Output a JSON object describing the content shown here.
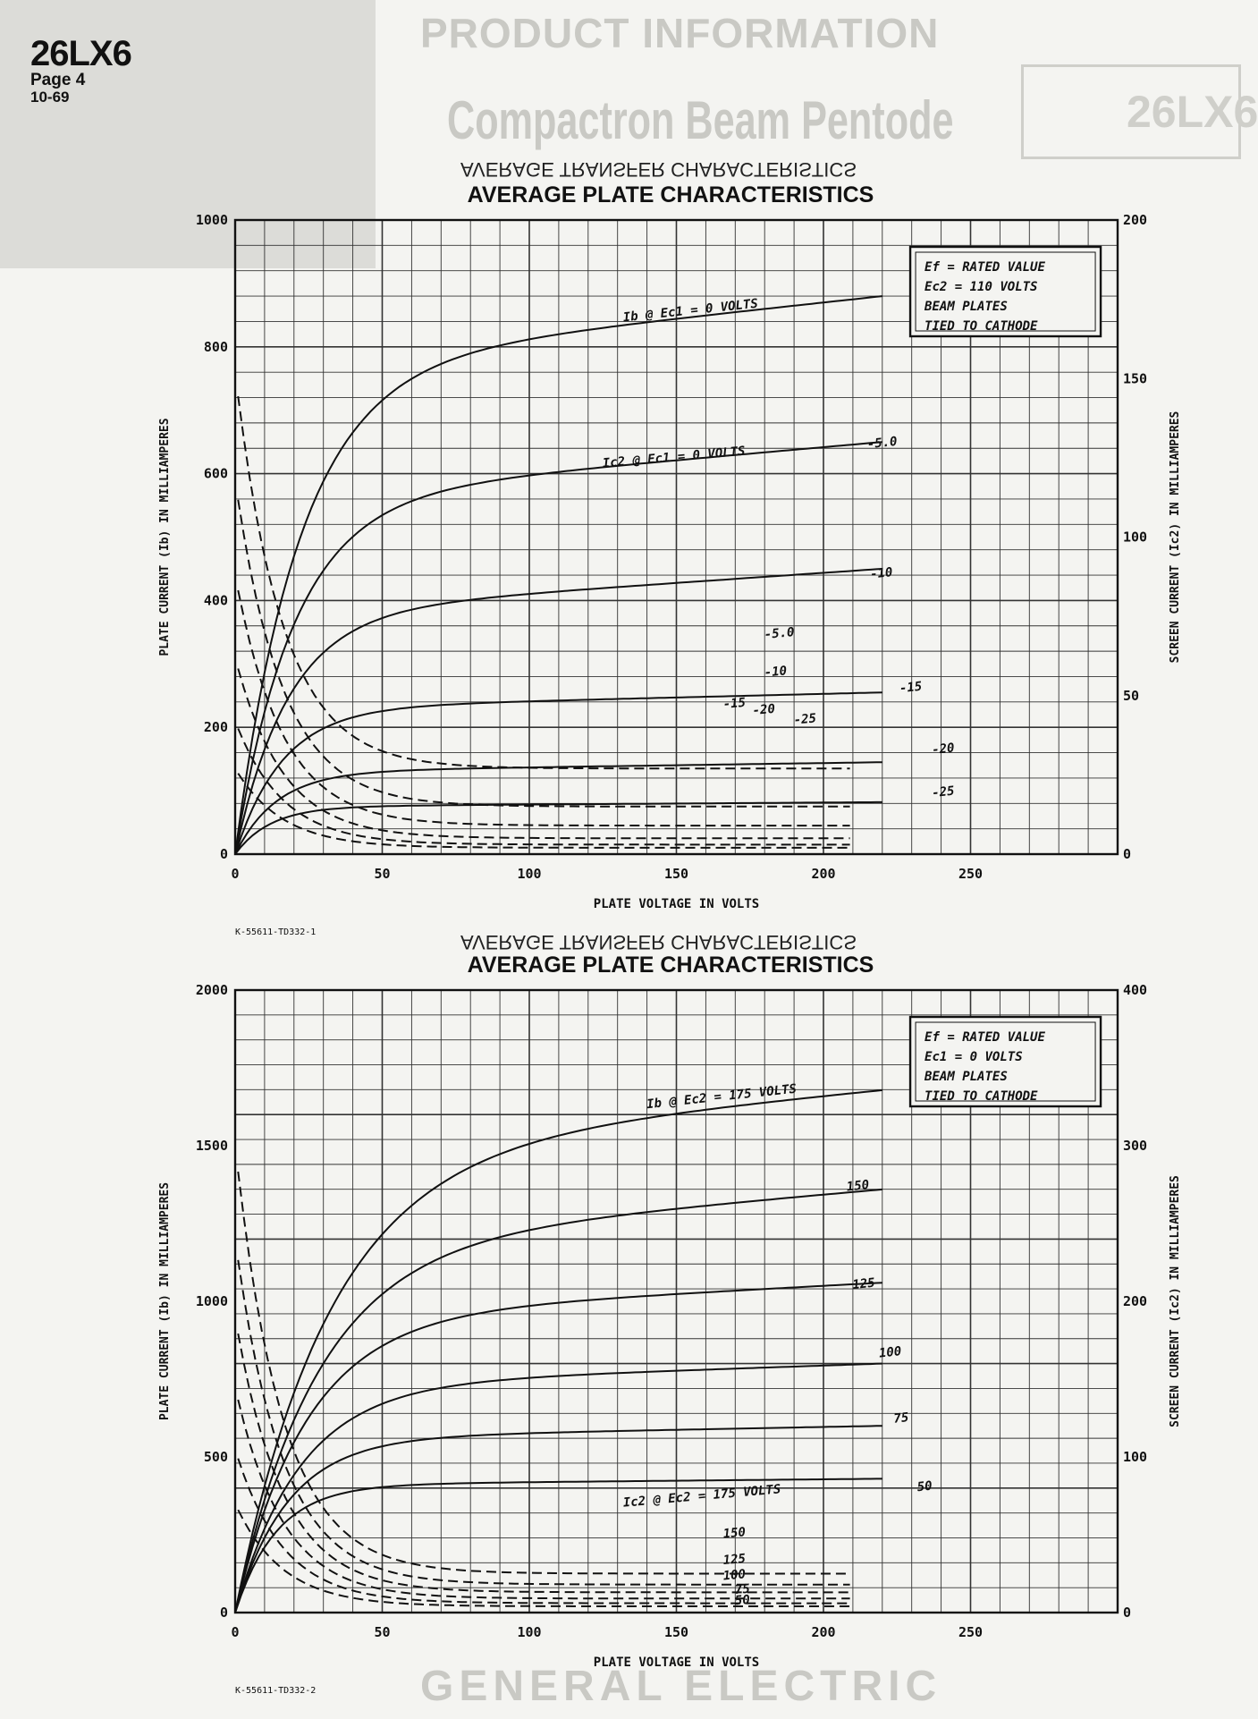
{
  "page": {
    "model": "26LX6",
    "page_label": "Page 4",
    "date": "10-69",
    "mirrored_title": "AVERAGE TRANSFER CHARACTERISTICS",
    "ghost_header": "PRODUCT INFORMATION",
    "ghost_subhead": "Compactron Beam Pentode",
    "ghost_box": "26LX6",
    "ghost_footer": "GENERAL ELECTRIC"
  },
  "colors": {
    "ink": "#111111",
    "paper": "#f4f4f1",
    "ghost": "#c9c9c4"
  },
  "chart_data": [
    {
      "type": "line",
      "title": "AVERAGE PLATE CHARACTERISTICS",
      "xlabel": "PLATE VOLTAGE IN VOLTS",
      "ylabel": "PLATE CURRENT (Ib) IN MILLIAMPERES",
      "y2label": "SCREEN CURRENT (Ic2) IN MILLIAMPERES",
      "xlim": [
        0,
        300
      ],
      "ylim": [
        0,
        1000
      ],
      "y2lim": [
        0,
        200
      ],
      "xticks": [
        0,
        50,
        100,
        150,
        200,
        250
      ],
      "yticks": [
        0,
        200,
        400,
        600,
        800,
        1000
      ],
      "y2ticks": [
        0,
        50,
        100,
        150,
        200
      ],
      "grid": true,
      "drawing_number": "K-55611-TD332-1",
      "conditions": [
        "Ef = RATED VALUE",
        "Ec2 = 110 VOLTS",
        "BEAM PLATES",
        "TIED TO CATHODE"
      ],
      "plate_series": [
        {
          "label": "Ib @ Ec1 = 0 VOLTS",
          "knee": 22,
          "level": 770,
          "end": 880,
          "at": [
            132,
            840
          ]
        },
        {
          "label": "-5.0",
          "knee": 20,
          "level": 560,
          "end": 650,
          "at": [
            215,
            640
          ]
        },
        {
          "label": "-10",
          "knee": 18,
          "level": 380,
          "end": 450,
          "at": [
            216,
            435
          ]
        },
        {
          "label": "-15",
          "knee": 16,
          "level": 230,
          "end": 255,
          "at": [
            226,
            255
          ]
        },
        {
          "label": "-20",
          "knee": 14,
          "level": 130,
          "end": 145,
          "at": [
            237,
            158
          ]
        },
        {
          "label": "-25",
          "knee": 12,
          "level": 75,
          "end": 82,
          "at": [
            237,
            90
          ]
        }
      ],
      "screen_series": [
        {
          "label": "Ic2 @ Ec1 = 0 VOLTS",
          "start": 152,
          "end": 27,
          "at": [
            125,
            122
          ]
        },
        {
          "label": "-5.0",
          "start": 118,
          "end": 15,
          "at": [
            180,
            68
          ]
        },
        {
          "label": "-10",
          "start": 88,
          "end": 9,
          "at": [
            180,
            56
          ]
        },
        {
          "label": "-15",
          "start": 62,
          "end": 5,
          "at": [
            166,
            46
          ]
        },
        {
          "label": "-20",
          "start": 42,
          "end": 3,
          "at": [
            176,
            44
          ]
        },
        {
          "label": "-25",
          "start": 27,
          "end": 2,
          "at": [
            190,
            41
          ]
        }
      ]
    },
    {
      "type": "line",
      "title": "AVERAGE PLATE CHARACTERISTICS",
      "xlabel": "PLATE VOLTAGE IN VOLTS",
      "ylabel": "PLATE CURRENT (Ib) IN MILLIAMPERES",
      "y2label": "SCREEN CURRENT (Ic2) IN MILLIAMPERES",
      "xlim": [
        0,
        300
      ],
      "ylim": [
        0,
        2000
      ],
      "y2lim": [
        0,
        400
      ],
      "xticks": [
        0,
        50,
        100,
        150,
        200,
        250
      ],
      "yticks": [
        0,
        500,
        1000,
        1500,
        2000
      ],
      "y2ticks": [
        0,
        100,
        200,
        300,
        400
      ],
      "grid": true,
      "drawing_number": "K-55611-TD332-2",
      "conditions": [
        "Ef = RATED VALUE",
        "Ec1 = 0 VOLTS",
        "BEAM PLATES",
        "TIED TO CATHODE"
      ],
      "plate_series": [
        {
          "label": "Ib @ Ec2 = 175 VOLTS",
          "knee": 32,
          "level": 1480,
          "end": 1680,
          "at": [
            140,
            1620
          ]
        },
        {
          "label": "150",
          "knee": 28,
          "level": 1180,
          "end": 1360,
          "at": [
            208,
            1355
          ]
        },
        {
          "label": "125",
          "knee": 24,
          "level": 950,
          "end": 1060,
          "at": [
            210,
            1040
          ]
        },
        {
          "label": "100",
          "knee": 22,
          "level": 730,
          "end": 800,
          "at": [
            219,
            820
          ]
        },
        {
          "label": "75",
          "knee": 18,
          "level": 560,
          "end": 600,
          "at": [
            224,
            610
          ]
        },
        {
          "label": "50",
          "knee": 14,
          "level": 410,
          "end": 430,
          "at": [
            232,
            390
          ]
        }
      ],
      "screen_series": [
        {
          "label": "Ic2 @ Ec2 = 175 VOLTS",
          "start": 300,
          "end": 25,
          "at": [
            132,
            68
          ]
        },
        {
          "label": "150",
          "start": 240,
          "end": 18,
          "at": [
            166,
            48
          ]
        },
        {
          "label": "125",
          "start": 190,
          "end": 13,
          "at": [
            166,
            31
          ]
        },
        {
          "label": "100",
          "start": 145,
          "end": 9,
          "at": [
            166,
            21
          ]
        },
        {
          "label": "75",
          "start": 105,
          "end": 6,
          "at": [
            170,
            12
          ]
        },
        {
          "label": "50",
          "start": 70,
          "end": 4,
          "at": [
            170,
            5
          ]
        }
      ]
    }
  ]
}
